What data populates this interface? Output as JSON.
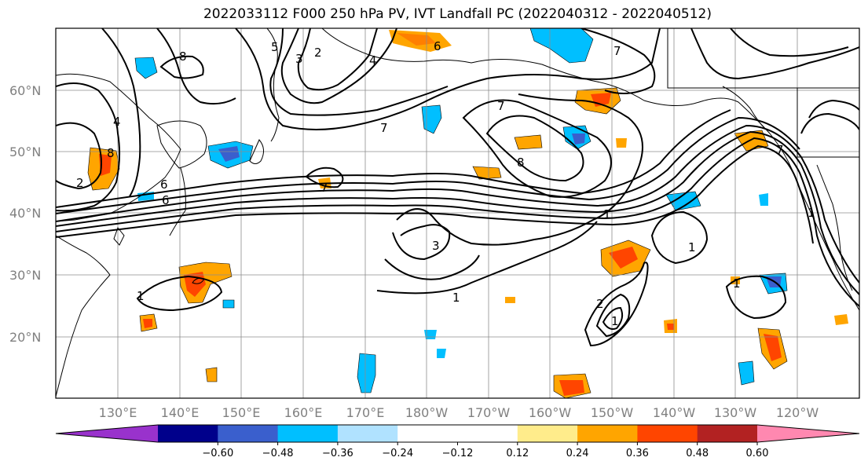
{
  "title": "2022033112 F000 250 hPa PV, IVT Landfall PC (2022040312 - 2022040512)",
  "lat_labels": [
    "60°N",
    "50°N",
    "40°N",
    "30°N",
    "20°N"
  ],
  "lon_labels": [
    "130°E",
    "140°E",
    "150°E",
    "160°E",
    "170°E",
    "180°W",
    "170°W",
    "160°W",
    "150°W",
    "140°W",
    "130°W",
    "120°W"
  ],
  "colorbar": {
    "colors": [
      "#9932cc",
      "#00008b",
      "#3a5fcd",
      "#00bfff",
      "#b0e2ff",
      "#ffffff",
      "#ffffff",
      "#ffec8b",
      "#ffa500",
      "#ff4500",
      "#b22222",
      "#ff88b0"
    ],
    "labels": [
      "−0.60",
      "−0.48",
      "−0.36",
      "−0.24",
      "−0.12",
      "0.12",
      "0.24",
      "0.36",
      "0.48",
      "0.60"
    ]
  },
  "contour_labels": [
    "8",
    "5",
    "3",
    "2",
    "4",
    "6",
    "7",
    "4",
    "8",
    "2",
    "6",
    "6",
    "7",
    "7",
    "8",
    "7",
    "3",
    "1",
    "1",
    "2",
    "1",
    "1",
    "1",
    "1",
    "7",
    "1"
  ],
  "icons": [
    "map-frame",
    "colorbar"
  ]
}
